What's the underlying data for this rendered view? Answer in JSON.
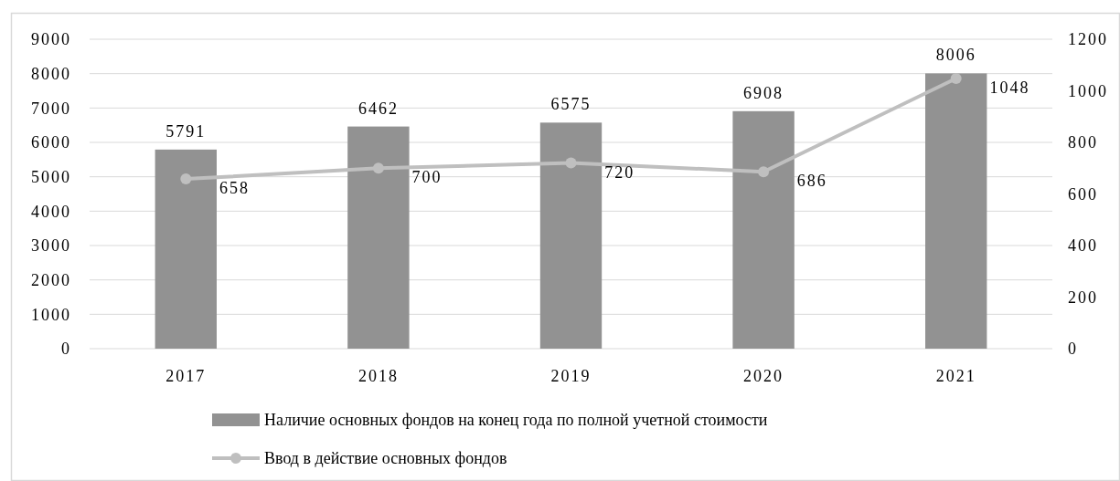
{
  "chart_data": {
    "type": "bar",
    "categories": [
      "2017",
      "2018",
      "2019",
      "2020",
      "2021"
    ],
    "series": [
      {
        "name": "Наличие основных фондов на конец года по полной учетной стоимости",
        "color": "#929292",
        "values": [
          5791,
          6462,
          6575,
          6908,
          8006
        ]
      },
      {
        "name": "Ввод в действие основных фондов",
        "type": "line",
        "axis": "y2",
        "color": "#bfbfbf",
        "values": [
          658,
          700,
          720,
          686,
          1048
        ]
      }
    ],
    "ylim": [
      0,
      9000
    ],
    "yticks": [
      0,
      1000,
      2000,
      3000,
      4000,
      5000,
      6000,
      7000,
      8000,
      9000
    ],
    "y2lim": [
      0,
      1200
    ],
    "y2ticks": [
      0,
      200,
      400,
      600,
      800,
      1000,
      1200
    ],
    "grid": "y",
    "legend": "bottom",
    "data_labels": true,
    "marker": "circle"
  }
}
